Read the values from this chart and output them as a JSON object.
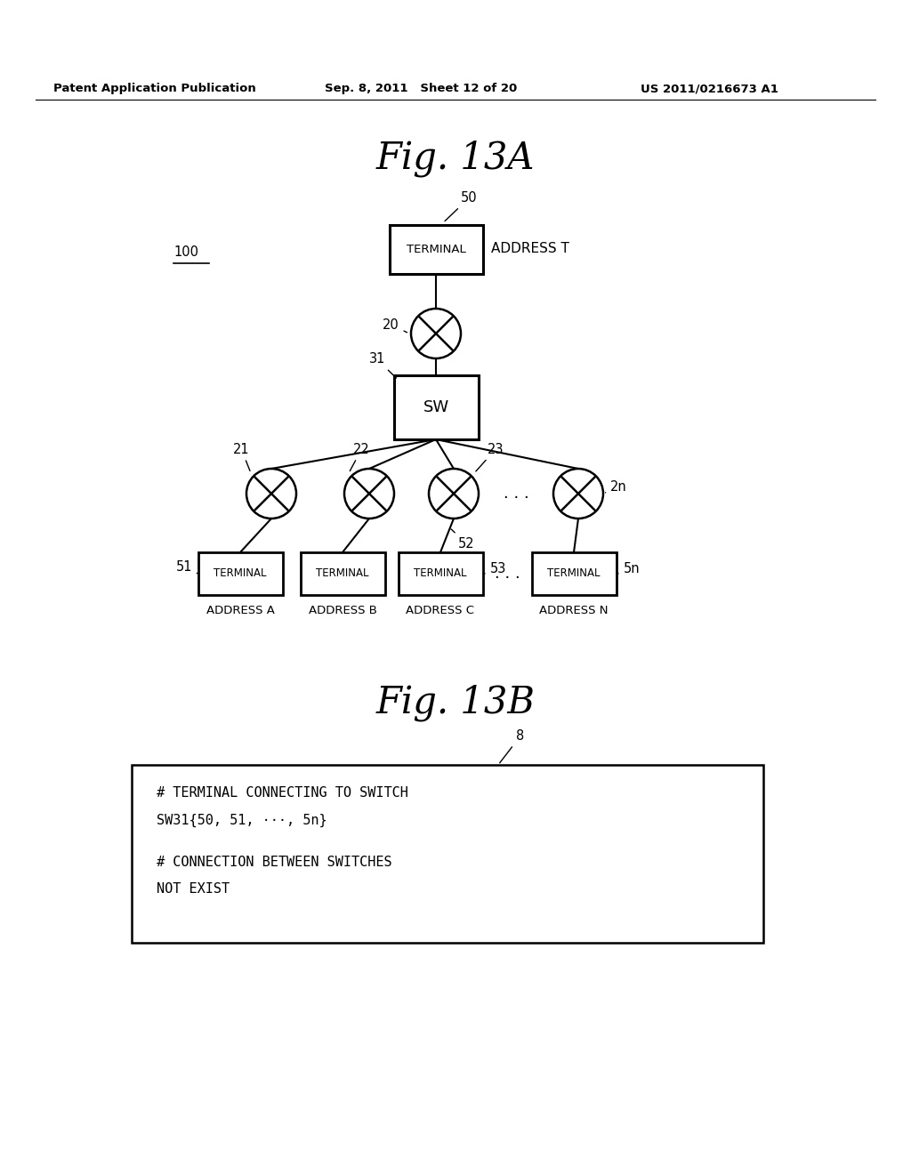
{
  "bg_color": "#ffffff",
  "header_left": "Patent Application Publication",
  "header_mid": "Sep. 8, 2011   Sheet 12 of 20",
  "header_right": "US 2011/0216673 A1",
  "fig13a_title": "F i g . 1 3 A",
  "fig13b_title": "F i g . 1 3 B",
  "label_100": "100",
  "label_50": "50",
  "label_20": "20",
  "label_31": "31",
  "label_21": "21",
  "label_22": "22",
  "label_23": "23",
  "label_2n": "2n",
  "label_51": "51",
  "label_52": "52",
  "label_53": "53",
  "label_5n": "5n",
  "label_8": "8",
  "addr_t": "ADDRESS T",
  "addr_a": "ADDRESS A",
  "addr_b": "ADDRESS B",
  "addr_c": "ADDRESS C",
  "addr_n": "ADDRESS N",
  "terminal_label": "TERMINAL",
  "sw_label": "SW",
  "text_box_line1": "# TERMINAL CONNECTING TO SWITCH",
  "text_box_line2": "SW31{50, 51, ···, 5n}",
  "text_box_line3": "# CONNECTION BETWEEN SWITCHES",
  "text_box_line4": "NOT EXIST",
  "fig13a_title_raw": "Fig. 13A",
  "fig13b_title_raw": "Fig. 13B"
}
